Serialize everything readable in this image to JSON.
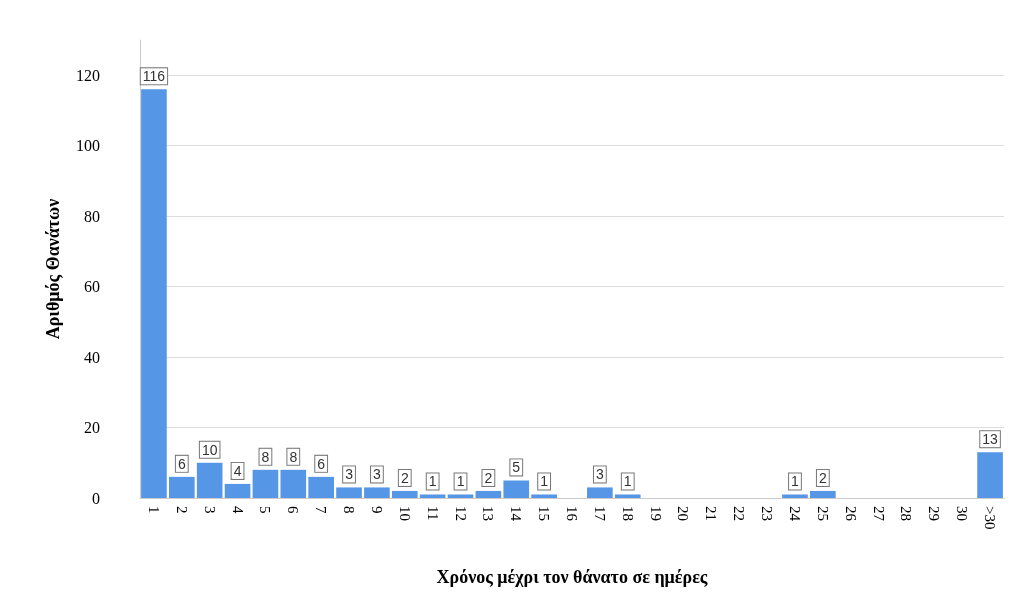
{
  "chart_data": {
    "type": "bar",
    "xlabel": "Χρόνος μέχρι τον θάνατο σε ημέρες",
    "ylabel": "Αριθμός Θανάτων",
    "categories": [
      "1",
      "2",
      "3",
      "4",
      "5",
      "6",
      "7",
      "8",
      "9",
      "10",
      "11",
      "12",
      "13",
      "14",
      "15",
      "16",
      "17",
      "18",
      "19",
      "20",
      "21",
      "22",
      "23",
      "24",
      "25",
      "26",
      "27",
      "28",
      "29",
      "30",
      ">30"
    ],
    "values": [
      116,
      6,
      10,
      4,
      8,
      8,
      6,
      3,
      3,
      2,
      1,
      1,
      2,
      5,
      1,
      null,
      3,
      1,
      null,
      null,
      null,
      null,
      null,
      1,
      2,
      null,
      null,
      null,
      null,
      null,
      13
    ],
    "color": "#5596e6",
    "ylim": [
      0,
      130
    ],
    "yticks": [
      0,
      20,
      40,
      60,
      80,
      100,
      120
    ],
    "grid": "y",
    "data_labels": true
  }
}
